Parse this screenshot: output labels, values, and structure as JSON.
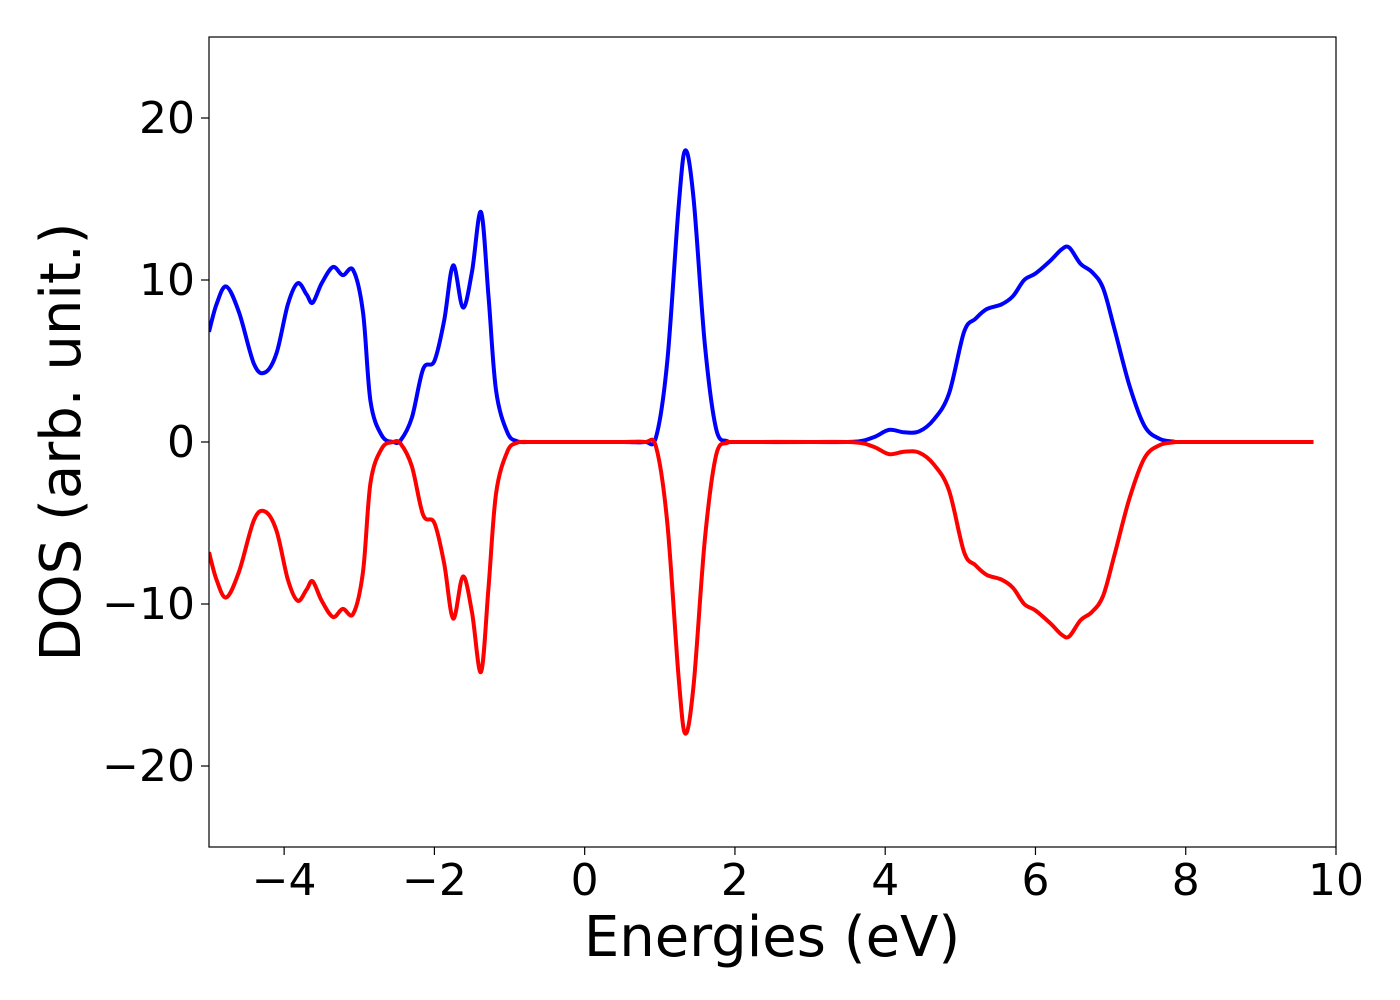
{
  "chart_data": {
    "type": "line",
    "xlabel": "Energies (eV)",
    "ylabel": "DOS (arb. unit.)",
    "xlim": [
      -5,
      10
    ],
    "ylim": [
      -25,
      25
    ],
    "x_ticks": [
      -4,
      -2,
      0,
      2,
      4,
      6,
      8,
      10
    ],
    "y_ticks": [
      -20,
      -10,
      0,
      10,
      20
    ],
    "x_tick_labels": [
      "−4",
      "−2",
      "0",
      "2",
      "4",
      "6",
      "8",
      "10"
    ],
    "y_tick_labels": [
      "−20",
      "−10",
      "0",
      "10",
      "20"
    ],
    "grid": false,
    "legend": "none",
    "series": [
      {
        "color": "#0000ff",
        "x": [
          -5.0,
          -4.9,
          -4.77,
          -4.6,
          -4.4,
          -4.25,
          -4.1,
          -3.95,
          -3.82,
          -3.7,
          -3.62,
          -3.5,
          -3.35,
          -3.22,
          -3.08,
          -2.95,
          -2.85,
          -2.7,
          -2.55,
          -2.45,
          -2.3,
          -2.15,
          -2.0,
          -1.87,
          -1.75,
          -1.62,
          -1.5,
          -1.38,
          -1.28,
          -1.18,
          -1.03,
          -0.9,
          -0.75,
          -0.6,
          -0.5,
          0.0,
          0.5,
          0.8,
          0.95,
          1.1,
          1.25,
          1.34,
          1.45,
          1.6,
          1.75,
          1.9,
          2.0,
          3.0,
          3.6,
          3.85,
          4.05,
          4.25,
          4.45,
          4.65,
          4.85,
          5.05,
          5.2,
          5.35,
          5.55,
          5.7,
          5.85,
          6.0,
          6.2,
          6.35,
          6.45,
          6.6,
          6.75,
          6.9,
          7.05,
          7.25,
          7.45,
          7.65,
          7.85,
          8.0,
          9.7
        ],
        "values": [
          6.8,
          8.5,
          9.6,
          8.0,
          4.8,
          4.3,
          5.5,
          8.5,
          9.8,
          9.1,
          8.6,
          9.8,
          10.8,
          10.3,
          10.6,
          8.0,
          2.5,
          0.4,
          0.0,
          0.1,
          1.5,
          4.5,
          5.0,
          7.5,
          10.9,
          8.3,
          10.5,
          14.2,
          9.0,
          3.2,
          0.6,
          0.05,
          0.0,
          0.0,
          0.0,
          0.0,
          0.0,
          0.0,
          0.3,
          5.0,
          14.5,
          18.0,
          15.0,
          6.0,
          0.8,
          0.05,
          0.0,
          0.0,
          0.02,
          0.3,
          0.75,
          0.6,
          0.65,
          1.4,
          3.0,
          6.8,
          7.6,
          8.2,
          8.5,
          9.0,
          10.0,
          10.4,
          11.2,
          11.9,
          12.0,
          11.0,
          10.5,
          9.5,
          7.0,
          3.5,
          1.0,
          0.2,
          0.02,
          0.0,
          0.0
        ]
      },
      {
        "color": "#ff0000",
        "x": [
          -5.0,
          -4.9,
          -4.77,
          -4.6,
          -4.4,
          -4.25,
          -4.1,
          -3.95,
          -3.82,
          -3.7,
          -3.62,
          -3.5,
          -3.35,
          -3.22,
          -3.08,
          -2.95,
          -2.85,
          -2.7,
          -2.55,
          -2.45,
          -2.3,
          -2.15,
          -2.0,
          -1.87,
          -1.75,
          -1.62,
          -1.5,
          -1.38,
          -1.28,
          -1.18,
          -1.03,
          -0.9,
          -0.75,
          -0.6,
          -0.5,
          0.0,
          0.5,
          0.8,
          0.95,
          1.1,
          1.25,
          1.34,
          1.45,
          1.6,
          1.75,
          1.9,
          2.0,
          3.0,
          3.6,
          3.85,
          4.05,
          4.25,
          4.45,
          4.65,
          4.85,
          5.05,
          5.2,
          5.35,
          5.55,
          5.7,
          5.85,
          6.0,
          6.2,
          6.35,
          6.45,
          6.6,
          6.75,
          6.9,
          7.05,
          7.25,
          7.45,
          7.65,
          7.85,
          8.0,
          9.7
        ],
        "values": [
          -6.8,
          -8.5,
          -9.6,
          -8.0,
          -4.8,
          -4.3,
          -5.5,
          -8.5,
          -9.8,
          -9.1,
          -8.6,
          -9.8,
          -10.8,
          -10.3,
          -10.6,
          -8.0,
          -2.5,
          -0.4,
          -0.0,
          -0.1,
          -1.5,
          -4.5,
          -5.0,
          -7.5,
          -10.9,
          -8.3,
          -10.5,
          -14.2,
          -9.0,
          -3.2,
          -0.6,
          -0.05,
          0.0,
          0.0,
          0.0,
          0.0,
          0.0,
          0.0,
          -0.3,
          -5.0,
          -14.5,
          -18.0,
          -15.0,
          -6.0,
          -0.8,
          -0.05,
          0.0,
          0.0,
          -0.02,
          -0.3,
          -0.75,
          -0.6,
          -0.65,
          -1.4,
          -3.0,
          -6.8,
          -7.6,
          -8.2,
          -8.5,
          -9.0,
          -10.0,
          -10.4,
          -11.2,
          -11.9,
          -12.0,
          -11.0,
          -10.5,
          -9.5,
          -7.0,
          -3.5,
          -1.0,
          -0.2,
          -0.02,
          0.0,
          0.0
        ]
      }
    ]
  }
}
